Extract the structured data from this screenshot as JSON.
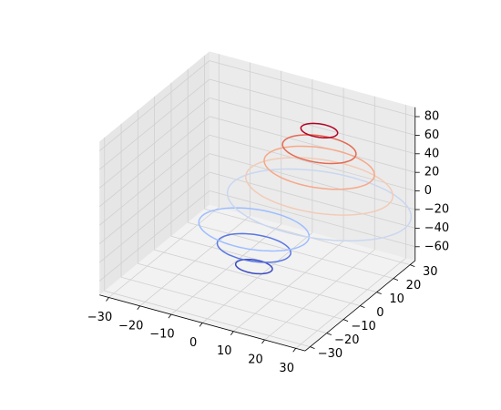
{
  "chart_data": {
    "type": "contour3d",
    "xlim": [
      -33,
      33
    ],
    "ylim": [
      -33,
      33
    ],
    "zlim": [
      -75,
      90
    ],
    "xticks": [
      {
        "value": -30,
        "label": "−30"
      },
      {
        "value": -20,
        "label": "−20"
      },
      {
        "value": -10,
        "label": "−10"
      },
      0,
      10,
      20,
      30
    ],
    "yticks": [
      {
        "value": -30,
        "label": "−30"
      },
      {
        "value": -20,
        "label": "−20"
      },
      {
        "value": -10,
        "label": "−10"
      },
      0,
      10,
      20,
      30
    ],
    "zticks": [
      {
        "value": -60,
        "label": "−60"
      },
      {
        "value": -40,
        "label": "−40"
      },
      {
        "value": -20,
        "label": "−20"
      },
      0,
      20,
      40,
      60,
      80
    ],
    "grid": true,
    "contours": [
      {
        "level": -60,
        "color": "#3b4cc0"
      },
      {
        "level": -40,
        "color": "#5977e3"
      },
      {
        "level": -20,
        "color": "#9ebeff"
      },
      {
        "level": 0,
        "color": "#c9d7f0"
      },
      {
        "level": 20,
        "color": "#f2cbb7"
      },
      {
        "level": 40,
        "color": "#f7a889"
      },
      {
        "level": 60,
        "color": "#e36a53"
      },
      {
        "level": 80,
        "color": "#b40426"
      }
    ]
  }
}
